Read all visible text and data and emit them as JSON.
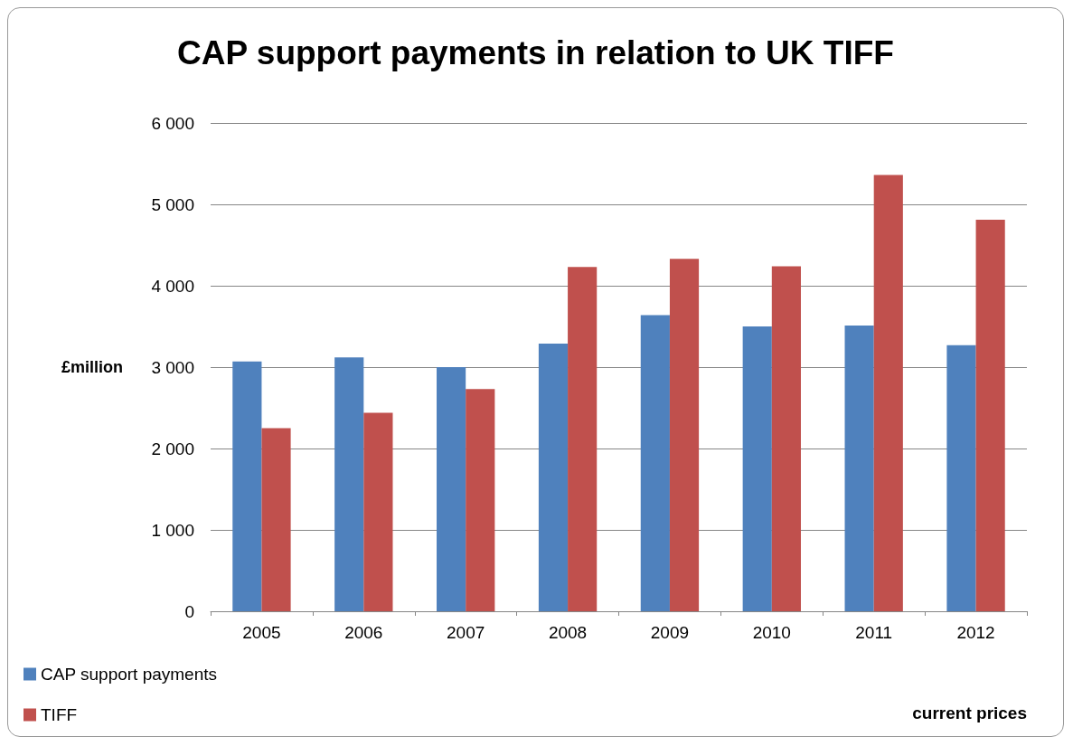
{
  "chart_data": {
    "type": "bar",
    "title": "CAP support payments in relation to UK TIFF",
    "ylabel": "£million",
    "categories": [
      "2005",
      "2006",
      "2007",
      "2008",
      "2009",
      "2010",
      "2011",
      "2012"
    ],
    "series": [
      {
        "name": "CAP support payments",
        "color": "#4f81bd",
        "values": [
          3070,
          3120,
          3000,
          3290,
          3640,
          3500,
          3510,
          3270
        ]
      },
      {
        "name": "TIFF",
        "color": "#c0504d",
        "values": [
          2250,
          2440,
          2730,
          4230,
          4330,
          4240,
          5360,
          4810
        ]
      }
    ],
    "ylim": [
      0,
      6000
    ],
    "yticks": [
      {
        "value": 0,
        "label": "0"
      },
      {
        "value": 1000,
        "label": "1 000"
      },
      {
        "value": 2000,
        "label": "2 000"
      },
      {
        "value": 3000,
        "label": "3 000"
      },
      {
        "value": 4000,
        "label": "4 000"
      },
      {
        "value": 5000,
        "label": "5 000"
      },
      {
        "value": 6000,
        "label": "6 000"
      }
    ],
    "grid": "y",
    "legend": "bottom left",
    "annotations": [
      "current prices"
    ]
  }
}
